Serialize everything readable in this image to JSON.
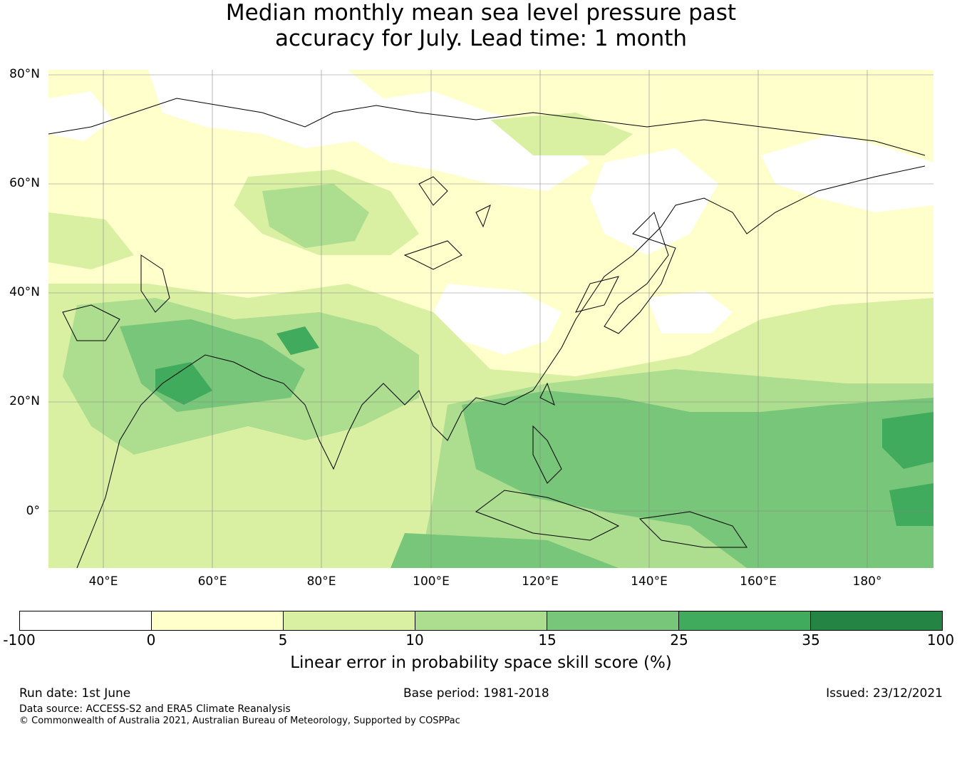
{
  "title": {
    "line1": "Median monthly mean sea level pressure past",
    "line2": "accuracy for July. Lead time: 1 month"
  },
  "map": {
    "lat_labels": [
      "80°N",
      "60°N",
      "40°N",
      "20°N",
      "0°"
    ],
    "lon_labels": [
      "40°E",
      "60°E",
      "80°E",
      "100°E",
      "120°E",
      "140°E",
      "160°E",
      "180°"
    ],
    "extent": {
      "lon_min": 30,
      "lon_max": 192,
      "lat_min": -10,
      "lat_max": 81
    },
    "grid_lines": true
  },
  "colorbar": {
    "label": "Linear error in probability space skill score (%)",
    "ticks": [
      "-100",
      "0",
      "5",
      "10",
      "15",
      "25",
      "35",
      "100"
    ],
    "colors": [
      "#ffffff",
      "#ffffcc",
      "#d9f0a3",
      "#addd8e",
      "#78c679",
      "#41ab5d",
      "#238443"
    ]
  },
  "footer": {
    "run_date": "Run date: 1st June",
    "base_period": "Base period: 1981-2018",
    "issued": "Issued: 23/12/2021",
    "data_source": "Data source: ACCESS-S2 and ERA5 Climate Reanalysis",
    "copyright": "© Commonwealth of Australia 2021, Australian Bureau of Meteorology, Supported by COSPPac"
  }
}
